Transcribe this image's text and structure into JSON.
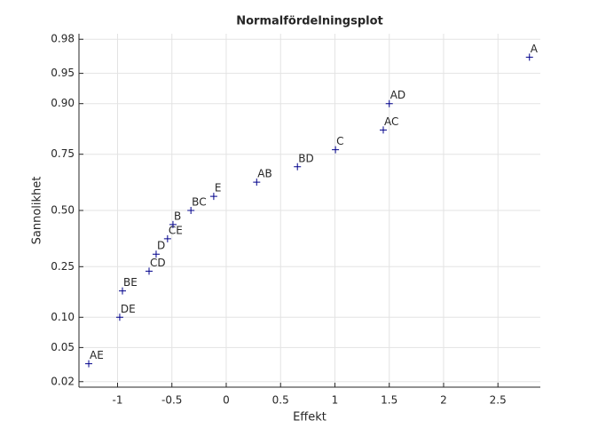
{
  "chart_data": {
    "type": "scatter",
    "title": "Normalfördelningsplot",
    "x_label": "Effekt",
    "y_label": "Sannolikhet",
    "yscale": "normal",
    "grid": true,
    "marker": "+",
    "color": "#00008b",
    "labels": [
      "AE",
      "DE",
      "BE",
      "CD",
      "D",
      "CE",
      "B",
      "BC",
      "E",
      "AB",
      "BD",
      "C",
      "AC",
      "AD",
      "A"
    ],
    "x": [
      -1.265,
      -0.98,
      -0.955,
      -0.71,
      -0.645,
      -0.54,
      -0.49,
      -0.325,
      -0.115,
      0.28,
      0.655,
      1.005,
      1.445,
      1.5,
      2.79
    ],
    "values": [
      0.033,
      0.1,
      0.167,
      0.233,
      0.3,
      0.367,
      0.433,
      0.5,
      0.567,
      0.633,
      0.7,
      0.767,
      0.833,
      0.9,
      0.967
    ],
    "xlim": [
      -1.355,
      2.89
    ],
    "ylim": [
      0.017,
      0.983
    ],
    "xticks": [
      -1,
      -0.5,
      0,
      0.5,
      1,
      1.5,
      2,
      2.5
    ],
    "yticks": [
      0.02,
      0.05,
      {
        "value": 0.1,
        "label": "0.10"
      },
      0.25,
      {
        "value": 0.5,
        "label": "0.50"
      },
      0.75,
      {
        "value": 0.9,
        "label": "0.90"
      },
      0.95,
      0.98
    ]
  }
}
